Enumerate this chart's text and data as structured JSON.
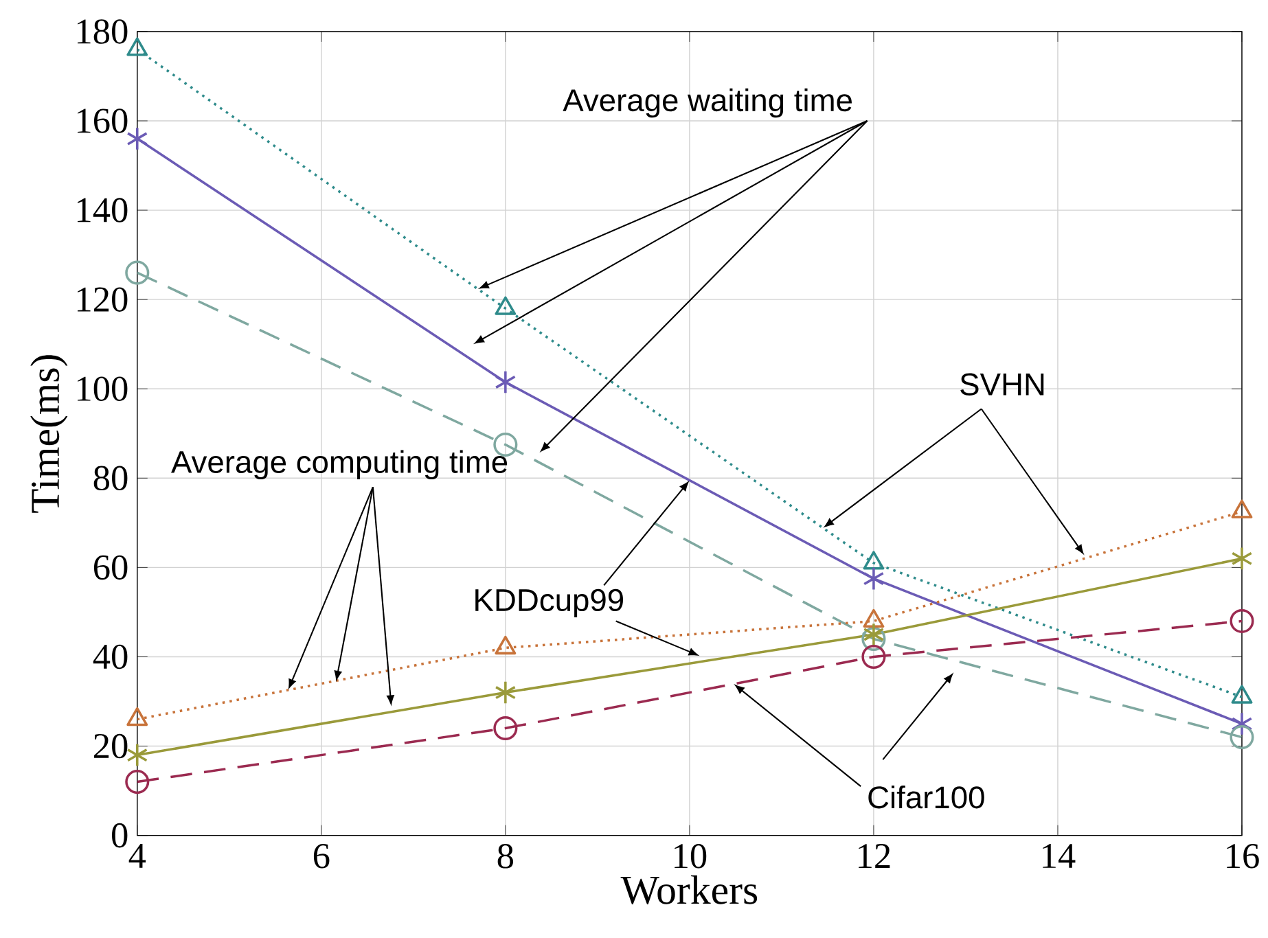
{
  "chart_data": {
    "type": "line",
    "xlabel": "Workers",
    "ylabel": "Time(ms)",
    "x": [
      4,
      8,
      12,
      16
    ],
    "xlim": [
      4,
      16
    ],
    "xticks": [
      4,
      6,
      8,
      10,
      12,
      14,
      16
    ],
    "ylim": [
      0,
      180
    ],
    "yticks": [
      0,
      20,
      40,
      60,
      80,
      100,
      120,
      140,
      160,
      180
    ],
    "grid": true,
    "series": [
      {
        "color": "#2e8b8b",
        "marker": "triangle",
        "line_style": "dotted",
        "values": [
          176,
          118,
          61,
          31
        ]
      },
      {
        "color": "#6b5bb5",
        "marker": "cross",
        "line_style": "solid",
        "values": [
          156,
          101.5,
          57.5,
          25
        ]
      },
      {
        "color": "#7fa8a0",
        "marker": "circle",
        "line_style": "dashed",
        "values": [
          126,
          87.5,
          44,
          22
        ]
      },
      {
        "color": "#c8733a",
        "marker": "triangle",
        "line_style": "dotted",
        "values": [
          26,
          42,
          48,
          72.5
        ]
      },
      {
        "color": "#9a9a3a",
        "marker": "cross",
        "line_style": "solid",
        "values": [
          18,
          32,
          45,
          62
        ]
      },
      {
        "color": "#9b2a50",
        "marker": "circle",
        "line_style": "dashed",
        "values": [
          12,
          24,
          40,
          48
        ]
      }
    ],
    "annotations": [
      {
        "text": "Average waiting time",
        "x": 7.7,
        "y": 122.35
      },
      {
        "text": "SVHN",
        "x": 11.45,
        "y": 68.84
      },
      {
        "text": "Average computing time",
        "x": 5.64,
        "y": 32.56
      },
      {
        "text": "KDDcup99",
        "x": 10,
        "y": 79.5
      },
      {
        "text": "Cifar100",
        "x": 10.48,
        "y": 33.92
      }
    ]
  }
}
